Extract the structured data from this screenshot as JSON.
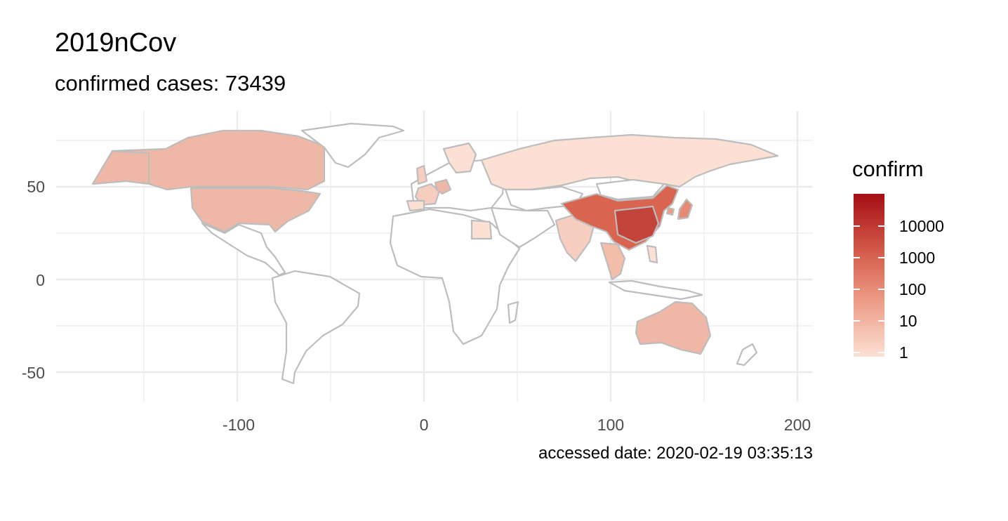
{
  "title": "2019nCov",
  "subtitle": "confirmed cases: 73439",
  "caption": "accessed date: 2020-02-19 03:35:13",
  "chart_data": {
    "type": "choropleth-map",
    "projection": "equirectangular",
    "x_ticks": [
      "-100",
      "0",
      "100",
      "200"
    ],
    "y_ticks": [
      "50",
      "0",
      "-50"
    ],
    "xlim": [
      -185,
      210
    ],
    "ylim": [
      -62,
      90
    ],
    "legend": {
      "title": "confirm",
      "scale": "log",
      "breaks": [
        "10000",
        "1000",
        "100",
        "10",
        "1"
      ],
      "color_low": "#fce0d4",
      "color_high": "#a50f15"
    },
    "colors": {
      "border": "#bdbdbd",
      "no_data": "#ffffff",
      "grid": "#ebebeb"
    },
    "regions": [
      {
        "name": "China (Hubei)",
        "confirm": 62031
      },
      {
        "name": "China",
        "confirm": 11408
      },
      {
        "name": "Japan",
        "confirm": 73
      },
      {
        "name": "Singapore",
        "confirm": 77
      },
      {
        "name": "Thailand",
        "confirm": 35
      },
      {
        "name": "South Korea",
        "confirm": 31
      },
      {
        "name": "Malaysia",
        "confirm": 22
      },
      {
        "name": "Germany",
        "confirm": 16
      },
      {
        "name": "Vietnam",
        "confirm": 16
      },
      {
        "name": "Australia",
        "confirm": 15
      },
      {
        "name": "United States",
        "confirm": 15
      },
      {
        "name": "France",
        "confirm": 12
      },
      {
        "name": "United Kingdom",
        "confirm": 9
      },
      {
        "name": "Canada",
        "confirm": 8
      },
      {
        "name": "Philippines",
        "confirm": 3
      },
      {
        "name": "India",
        "confirm": 3
      },
      {
        "name": "Italy",
        "confirm": 3
      },
      {
        "name": "Russia",
        "confirm": 2
      },
      {
        "name": "Spain",
        "confirm": 2
      },
      {
        "name": "Egypt",
        "confirm": 1
      },
      {
        "name": "Finland",
        "confirm": 1
      },
      {
        "name": "Sweden",
        "confirm": 1
      },
      {
        "name": "Belgium",
        "confirm": 1
      },
      {
        "name": "Nepal",
        "confirm": 1
      },
      {
        "name": "Sri Lanka",
        "confirm": 1
      },
      {
        "name": "Cambodia",
        "confirm": 1
      }
    ]
  }
}
